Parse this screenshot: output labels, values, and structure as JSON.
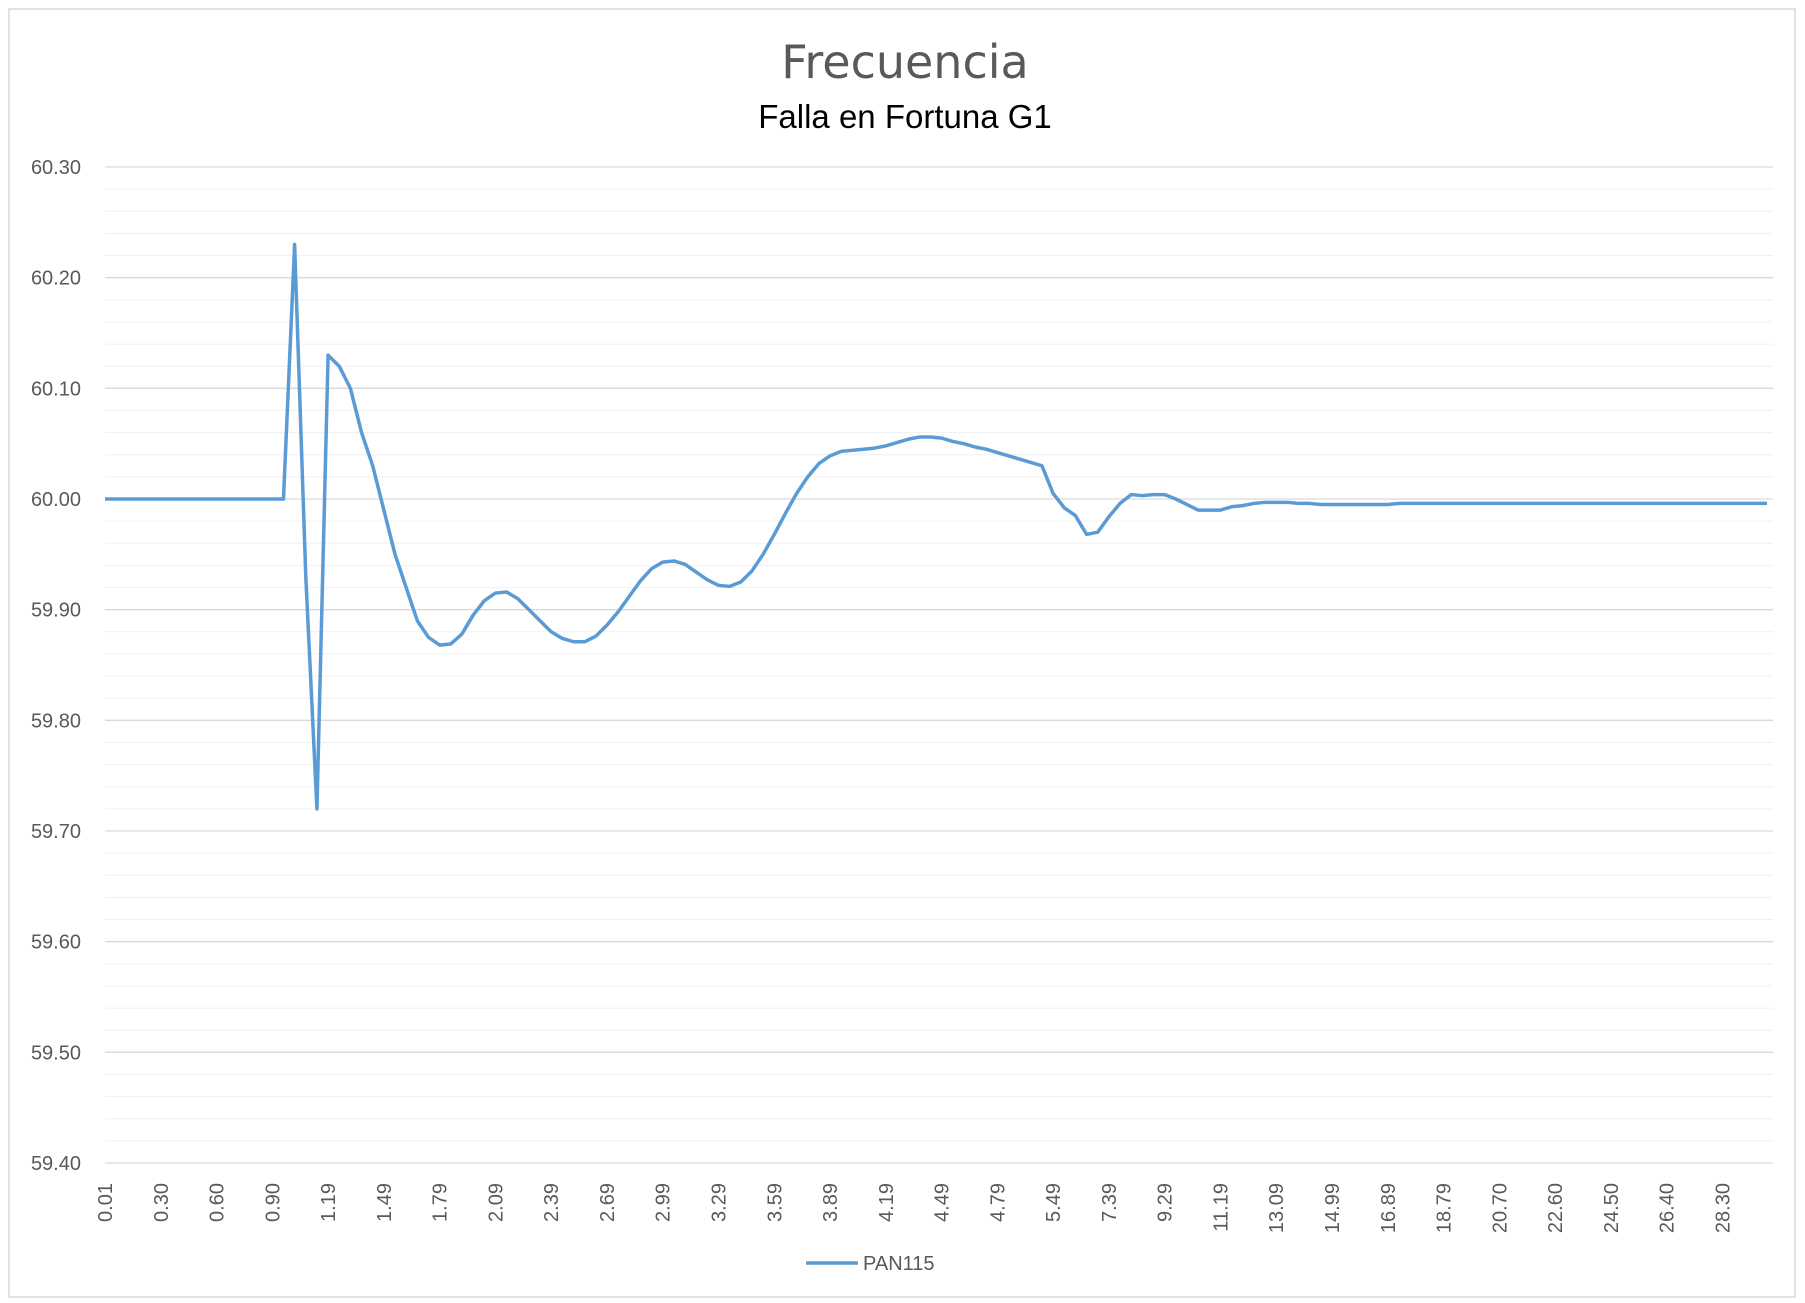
{
  "chart_data": {
    "type": "line",
    "title": "Frecuencia",
    "subtitle": "Falla en  Fortuna G1",
    "categories": [
      "0.01",
      null,
      null,
      null,
      null,
      "0.30",
      null,
      null,
      null,
      null,
      "0.60",
      null,
      null,
      null,
      null,
      "0.90",
      null,
      null,
      null,
      null,
      "1.19",
      null,
      null,
      null,
      null,
      "1.49",
      null,
      null,
      null,
      null,
      "1.79",
      null,
      null,
      null,
      null,
      "2.09",
      null,
      null,
      null,
      null,
      "2.39",
      null,
      null,
      null,
      null,
      "2.69",
      null,
      null,
      null,
      null,
      "2.99",
      null,
      null,
      null,
      null,
      "3.29",
      null,
      null,
      null,
      null,
      "3.59",
      null,
      null,
      null,
      null,
      "3.89",
      null,
      null,
      null,
      null,
      "4.19",
      null,
      null,
      null,
      null,
      "4.49",
      null,
      null,
      null,
      null,
      "4.79",
      null,
      null,
      null,
      null,
      "5.49",
      null,
      null,
      null,
      null,
      "7.39",
      null,
      null,
      null,
      null,
      "9.29",
      null,
      null,
      null,
      null,
      "11.19",
      null,
      null,
      null,
      null,
      "13.09",
      null,
      null,
      null,
      null,
      "14.99",
      null,
      null,
      null,
      null,
      "16.89",
      null,
      null,
      null,
      null,
      "18.79",
      null,
      null,
      null,
      null,
      "20.70",
      null,
      null,
      null,
      null,
      "22.60",
      null,
      null,
      null,
      null,
      "24.50",
      null,
      null,
      null,
      null,
      "26.40",
      null,
      null,
      null,
      null,
      "28.30",
      null,
      null,
      null,
      null
    ],
    "series": [
      {
        "name": "PAN115",
        "color": "#5b9bd5",
        "values": [
          60.0,
          60.0,
          60.0,
          60.0,
          60.0,
          60.0,
          60.0,
          60.0,
          60.0,
          60.0,
          60.0,
          60.0,
          60.0,
          60.0,
          60.0,
          60.0,
          60.0,
          60.23,
          59.93,
          59.72,
          60.13,
          60.12,
          60.1,
          60.06,
          60.03,
          59.99,
          59.95,
          59.92,
          59.89,
          59.875,
          59.868,
          59.869,
          59.878,
          59.895,
          59.908,
          59.915,
          59.916,
          59.91,
          59.9,
          59.89,
          59.88,
          59.874,
          59.871,
          59.871,
          59.876,
          59.886,
          59.898,
          59.912,
          59.926,
          59.937,
          59.943,
          59.944,
          59.941,
          59.934,
          59.927,
          59.922,
          59.921,
          59.925,
          59.935,
          59.95,
          59.968,
          59.987,
          60.005,
          60.02,
          60.032,
          60.039,
          60.043,
          60.044,
          60.045,
          60.046,
          60.048,
          60.051,
          60.054,
          60.056,
          60.056,
          60.055,
          60.052,
          60.05,
          60.047,
          60.045,
          60.042,
          60.039,
          60.036,
          60.033,
          60.03,
          60.005,
          59.992,
          59.985,
          59.968,
          59.97,
          59.984,
          59.996,
          60.004,
          60.003,
          60.004,
          60.004,
          60.0,
          59.995,
          59.99,
          59.99,
          59.99,
          59.993,
          59.994,
          59.996,
          59.997,
          59.997,
          59.997,
          59.996,
          59.996,
          59.995,
          59.995,
          59.995,
          59.995,
          59.995,
          59.995,
          59.995,
          59.996,
          59.996,
          59.996,
          59.996,
          59.996,
          59.996,
          59.996,
          59.996,
          59.996,
          59.996,
          59.996,
          59.996,
          59.996,
          59.996,
          59.996,
          59.996,
          59.996,
          59.996,
          59.996,
          59.996,
          59.996,
          59.996,
          59.996,
          59.996,
          59.996,
          59.996,
          59.996,
          59.996,
          59.996,
          59.996,
          59.996,
          59.996,
          59.996,
          59.996
        ]
      }
    ],
    "ylim": [
      59.4,
      60.3
    ],
    "yticks": [
      {
        "value": 59.4,
        "label": "59.40"
      },
      {
        "value": 59.5,
        "label": "59.50"
      },
      {
        "value": 59.6,
        "label": "59.60"
      },
      {
        "value": 59.7,
        "label": "59.70"
      },
      {
        "value": 59.8,
        "label": "59.80"
      },
      {
        "value": 59.9,
        "label": "59.90"
      },
      {
        "value": 60.0,
        "label": "60.00"
      },
      {
        "value": 60.1,
        "label": "60.10"
      },
      {
        "value": 60.2,
        "label": "60.20"
      },
      {
        "value": 60.3,
        "label": "60.30"
      }
    ],
    "minor_yticks": [
      59.42,
      59.44,
      59.46,
      59.48,
      59.52,
      59.54,
      59.56,
      59.58,
      59.62,
      59.64,
      59.66,
      59.68,
      59.72,
      59.74,
      59.76,
      59.78,
      59.82,
      59.84,
      59.86,
      59.88,
      59.92,
      59.94,
      59.96,
      59.98,
      60.02,
      60.04,
      60.06,
      60.08,
      60.12,
      60.14,
      60.16,
      60.18,
      60.22,
      60.24,
      60.26,
      60.28
    ],
    "grid": true,
    "legend": "bottom"
  }
}
